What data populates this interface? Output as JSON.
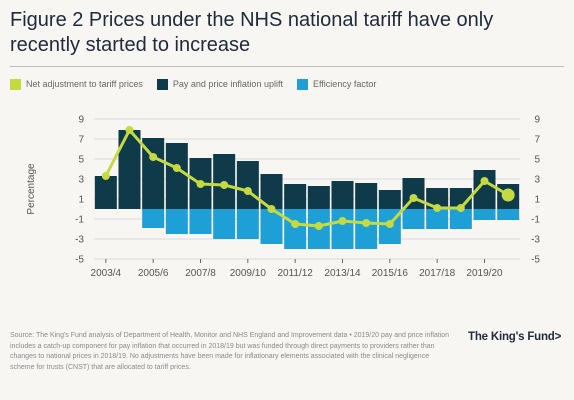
{
  "figure": {
    "title": "Figure 2 Prices under the NHS national tariff have only recently started to increase"
  },
  "legend": [
    {
      "label": "Net adjustment to tariff prices",
      "color": "#c5d940"
    },
    {
      "label": "Pay and price inflation uplift",
      "color": "#0e3a4a"
    },
    {
      "label": "Efficiency factor",
      "color": "#1ea0d6"
    }
  ],
  "footer": {
    "source_note": "Source: The King's Fund analysis of Department of Health, Monitor and NHS England and Improvement data • 2019/20 pay and price inflation includes a catch-up component for pay inflation that occurred in 2018/19 but was funded through direct payments to providers rather than changes to national prices in 2018/19. No adjustments have been made for inflationary elements associated with the clinical negligence scheme for trusts (CNST) that are allocated to tariff prices.",
    "logo": "The King's Fund>"
  },
  "chart_data": {
    "type": "bar",
    "ylabel": "Percentage",
    "ylim": [
      -5,
      9
    ],
    "yticks": [
      "9",
      "7",
      "5",
      "3",
      "1",
      "-1",
      "-3",
      "-5"
    ],
    "xtick_labels": [
      "2003/4",
      "2005/6",
      "2007/8",
      "2009/10",
      "2011/12",
      "2013/14",
      "2015/16",
      "2017/18",
      "2019/20"
    ],
    "categories": [
      "2003/4",
      "2004/5",
      "2005/6",
      "2006/7",
      "2007/8",
      "2008/9",
      "2009/10",
      "2010/11",
      "2011/12",
      "2012/13",
      "2013/14",
      "2014/15",
      "2015/16",
      "2016/17",
      "2017/18",
      "2018/19",
      "2019/20",
      "2020/21"
    ],
    "series": [
      {
        "name": "Pay and price inflation uplift",
        "kind": "bar",
        "color": "#0e3a4a",
        "values": [
          3.3,
          7.9,
          7.1,
          6.6,
          5.1,
          5.5,
          4.8,
          3.5,
          2.5,
          2.3,
          2.8,
          2.6,
          1.9,
          3.1,
          2.1,
          2.1,
          3.9,
          2.5
        ]
      },
      {
        "name": "Efficiency factor",
        "kind": "bar",
        "color": "#1ea0d6",
        "values": [
          0,
          0,
          -1.9,
          -2.5,
          -2.5,
          -3.0,
          -3.0,
          -3.5,
          -4.0,
          -4.0,
          -4.0,
          -4.0,
          -3.5,
          -2.0,
          -2.0,
          -2.0,
          -1.1,
          -1.1
        ]
      },
      {
        "name": "Net adjustment to tariff prices",
        "kind": "line",
        "color": "#c5d940",
        "values": [
          3.3,
          7.9,
          5.2,
          4.1,
          2.5,
          2.4,
          1.8,
          0.0,
          -1.5,
          -1.7,
          -1.2,
          -1.4,
          -1.5,
          1.1,
          0.1,
          0.1,
          2.8,
          1.4
        ]
      }
    ]
  }
}
